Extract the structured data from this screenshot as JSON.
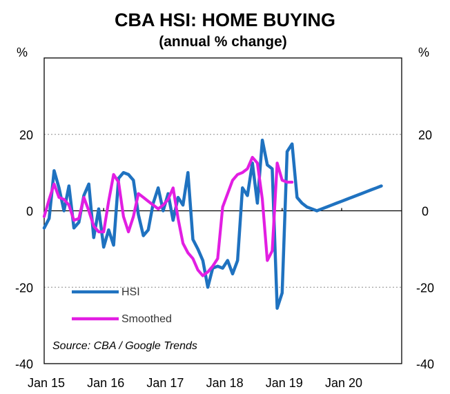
{
  "chart_data": {
    "type": "line",
    "title": "CBA HSI: HOME BUYING",
    "subtitle": "(annual % change)",
    "ylabel_left": "%",
    "ylabel_right": "%",
    "ylim": [
      -40,
      40
    ],
    "yticks": [
      20,
      0,
      -20,
      -40
    ],
    "ytick_labels": [
      "20",
      "0",
      "-20",
      "-40"
    ],
    "gridlines": [
      20,
      -20
    ],
    "xlim": [
      2015.0,
      2021.0
    ],
    "xticks": [
      2015,
      2016,
      2017,
      2018,
      2019,
      2020
    ],
    "xtick_labels": [
      "Jan 15",
      "Jan 16",
      "Jan 17",
      "Jan 18",
      "Jan 19",
      "Jan 20"
    ],
    "source": "Source: CBA / Google Trends",
    "series": [
      {
        "name": "HSI",
        "color": "#1f72c0",
        "x": [
          2015.0,
          2015.083,
          2015.167,
          2015.25,
          2015.333,
          2015.417,
          2015.5,
          2015.583,
          2015.667,
          2015.75,
          2015.833,
          2015.917,
          2016.0,
          2016.083,
          2016.167,
          2016.25,
          2016.333,
          2016.417,
          2016.5,
          2016.583,
          2016.667,
          2016.75,
          2016.833,
          2016.917,
          2017.0,
          2017.083,
          2017.167,
          2017.25,
          2017.333,
          2017.417,
          2017.5,
          2017.583,
          2017.667,
          2017.75,
          2017.833,
          2017.917,
          2018.0,
          2018.083,
          2018.167,
          2018.25,
          2018.333,
          2018.417,
          2018.5,
          2018.583,
          2018.667,
          2018.75,
          2018.833,
          2018.917,
          2019.0,
          2019.083,
          2019.167,
          2019.25,
          2019.333,
          2019.417,
          2019.5,
          2019.583,
          2019.667,
          2019.75,
          2019.833,
          2019.917,
          2020.0,
          2020.083,
          2020.167,
          2020.25,
          2020.333,
          2020.417,
          2020.5,
          2020.583,
          2020.667
        ],
        "values": [
          -4.5,
          -2.0,
          10.5,
          6.0,
          0.0,
          6.5,
          -4.5,
          -3.0,
          4.0,
          7.0,
          -7.0,
          0.5,
          -9.5,
          -5.0,
          -9.0,
          8.5,
          10.0,
          9.5,
          8.0,
          -1.0,
          -6.5,
          -5.0,
          2.0,
          6.0,
          0.0,
          4.5,
          -2.5,
          3.5,
          1.5,
          10.0,
          -7.5,
          -10.0,
          -13.0,
          -20.0,
          -15.0,
          -14.5,
          -15.0,
          -13.0,
          -16.5,
          -13.0,
          6.0,
          4.0,
          12.5,
          2.0,
          18.5,
          12.0,
          11.0,
          -25.5,
          -21.5,
          15.5,
          17.5,
          3.5,
          2.0,
          1.0,
          0.5,
          0.0,
          0.5,
          1.0,
          1.5,
          2.0,
          2.5,
          3.0,
          3.5,
          4.0,
          4.5,
          5.0,
          5.5,
          6.0,
          6.5
        ]
      },
      {
        "name": "Smoothed",
        "color": "#e21ee2",
        "x": [
          2015.0,
          2015.083,
          2015.167,
          2015.25,
          2015.333,
          2015.417,
          2015.5,
          2015.583,
          2015.667,
          2015.75,
          2015.833,
          2015.917,
          2016.0,
          2016.083,
          2016.167,
          2016.25,
          2016.333,
          2016.417,
          2016.5,
          2016.583,
          2016.667,
          2016.75,
          2016.833,
          2016.917,
          2017.0,
          2017.083,
          2017.167,
          2017.25,
          2017.333,
          2017.417,
          2017.5,
          2017.583,
          2017.667,
          2017.75,
          2017.833,
          2017.917,
          2018.0,
          2018.083,
          2018.167,
          2018.25,
          2018.333,
          2018.417,
          2018.5,
          2018.583,
          2018.667,
          2018.75,
          2018.833,
          2018.917,
          2019.0,
          2019.083,
          2019.167
        ],
        "values": [
          -1.5,
          3.0,
          7.0,
          3.5,
          3.0,
          1.5,
          -2.5,
          -2.0,
          3.5,
          0.0,
          -4.0,
          -5.5,
          -5.5,
          2.5,
          9.5,
          7.5,
          -1.5,
          -5.5,
          -1.5,
          4.5,
          3.5,
          2.5,
          1.5,
          0.5,
          1.5,
          3.0,
          6.0,
          -2.0,
          -8.5,
          -11.0,
          -12.5,
          -15.5,
          -17.0,
          -16.0,
          -14.5,
          -12.5,
          1.0,
          4.5,
          8.0,
          9.5,
          10.0,
          11.0,
          14.0,
          12.5,
          3.0,
          -13.0,
          -10.5,
          12.5,
          8.0,
          7.5,
          7.5
        ]
      }
    ],
    "legend": [
      "HSI",
      "Smoothed"
    ]
  }
}
